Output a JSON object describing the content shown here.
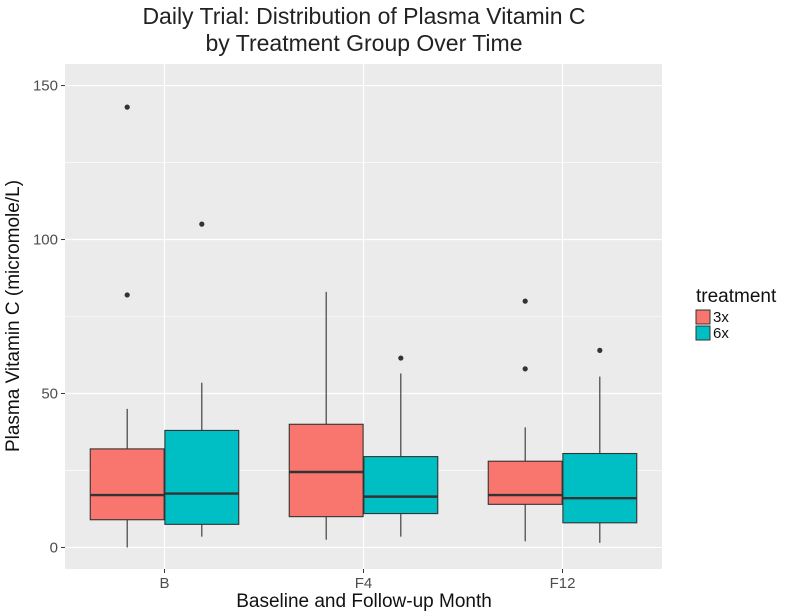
{
  "chart_data": {
    "type": "boxplot",
    "title_lines": [
      "Daily Trial: Distribution of Plasma Vitamin C",
      "by Treatment Group Over Time"
    ],
    "xlabel": "Baseline and Follow-up Month",
    "ylabel": "Plasma Vitamin C (micromole/L)",
    "categories": [
      "B",
      "F4",
      "F12"
    ],
    "ylim": [
      -7,
      157
    ],
    "yticks": [
      0,
      50,
      100,
      150
    ],
    "ytick_labels": [
      "0",
      "50",
      "100",
      "150"
    ],
    "grid": true,
    "legend": {
      "title": "treatment",
      "position": "right",
      "entries": [
        "3x",
        "6x"
      ]
    },
    "colors": {
      "3x": "#F8766D",
      "6x": "#00BFC4",
      "panel": "#EBEBEB",
      "gridline": "#FFFFFF",
      "outline": "#333333"
    },
    "series": [
      {
        "name": "3x",
        "boxes": [
          {
            "category": "B",
            "whisker_low": 0,
            "q1": 9,
            "median": 17,
            "q3": 32,
            "whisker_high": 45,
            "outliers": [
              82,
              143
            ]
          },
          {
            "category": "F4",
            "whisker_low": 2.5,
            "q1": 10,
            "median": 24.5,
            "q3": 40,
            "whisker_high": 83,
            "outliers": []
          },
          {
            "category": "F12",
            "whisker_low": 2,
            "q1": 14,
            "median": 17,
            "q3": 28,
            "whisker_high": 39,
            "outliers": [
              58,
              80
            ]
          }
        ]
      },
      {
        "name": "6x",
        "boxes": [
          {
            "category": "B",
            "whisker_low": 3.5,
            "q1": 7.5,
            "median": 17.5,
            "q3": 38,
            "whisker_high": 53.5,
            "outliers": [
              105
            ]
          },
          {
            "category": "F4",
            "whisker_low": 3.5,
            "q1": 11,
            "median": 16.5,
            "q3": 29.5,
            "whisker_high": 56.5,
            "outliers": [
              61.5
            ]
          },
          {
            "category": "F12",
            "whisker_low": 1.5,
            "q1": 8,
            "median": 16,
            "q3": 30.5,
            "whisker_high": 55.5,
            "outliers": [
              64
            ]
          }
        ]
      }
    ]
  }
}
